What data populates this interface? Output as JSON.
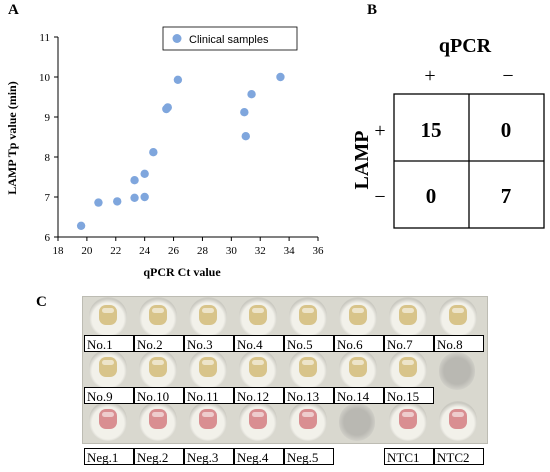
{
  "panels": {
    "a": "A",
    "b": "B",
    "c": "C"
  },
  "chart_data": {
    "type": "scatter",
    "title": "",
    "xlabel": "qPCR Ct value",
    "ylabel": "LAMP  Tp value (min)",
    "xlim": [
      18,
      36
    ],
    "ylim": [
      6,
      11
    ],
    "xticks": [
      18,
      20,
      22,
      24,
      26,
      28,
      30,
      32,
      34,
      36
    ],
    "yticks": [
      6,
      7,
      8,
      9,
      10,
      11
    ],
    "legend_position": "top-right",
    "grid": false,
    "series": [
      {
        "name": "Clinical samples",
        "color": "#7fa6dd",
        "x": [
          19.6,
          20.8,
          22.1,
          23.3,
          23.3,
          24.0,
          24.0,
          24.6,
          25.5,
          25.6,
          26.3,
          30.9,
          31.0,
          31.4,
          33.4
        ],
        "y": [
          6.28,
          6.86,
          6.89,
          7.42,
          6.98,
          7.58,
          7.0,
          8.12,
          9.2,
          9.24,
          9.93,
          9.12,
          8.52,
          9.57,
          10.0
        ]
      }
    ]
  },
  "contingency": {
    "top_header": "qPCR",
    "side_header": "LAMP",
    "col_labels": [
      "+",
      "−"
    ],
    "row_labels": [
      "+",
      "−"
    ],
    "cells": [
      [
        "15",
        "0"
      ],
      [
        "0",
        "7"
      ]
    ]
  },
  "photo": {
    "row1_labels": [
      "No.1",
      "No.2",
      "No.3",
      "No.4",
      "No.5",
      "No.6",
      "No.7",
      "No.8"
    ],
    "row2_labels": [
      "No.9",
      "No.10",
      "No.11",
      "No.12",
      "No.13",
      "No.14",
      "No.15"
    ],
    "row3_labels": [
      "Neg.1",
      "Neg.2",
      "Neg.3",
      "Neg.4",
      "Neg.5",
      "NTC1",
      "NTC2"
    ],
    "colors": {
      "positive": "#d8c48a",
      "negative": "#d98e91",
      "background": "#d9d8cf"
    }
  }
}
